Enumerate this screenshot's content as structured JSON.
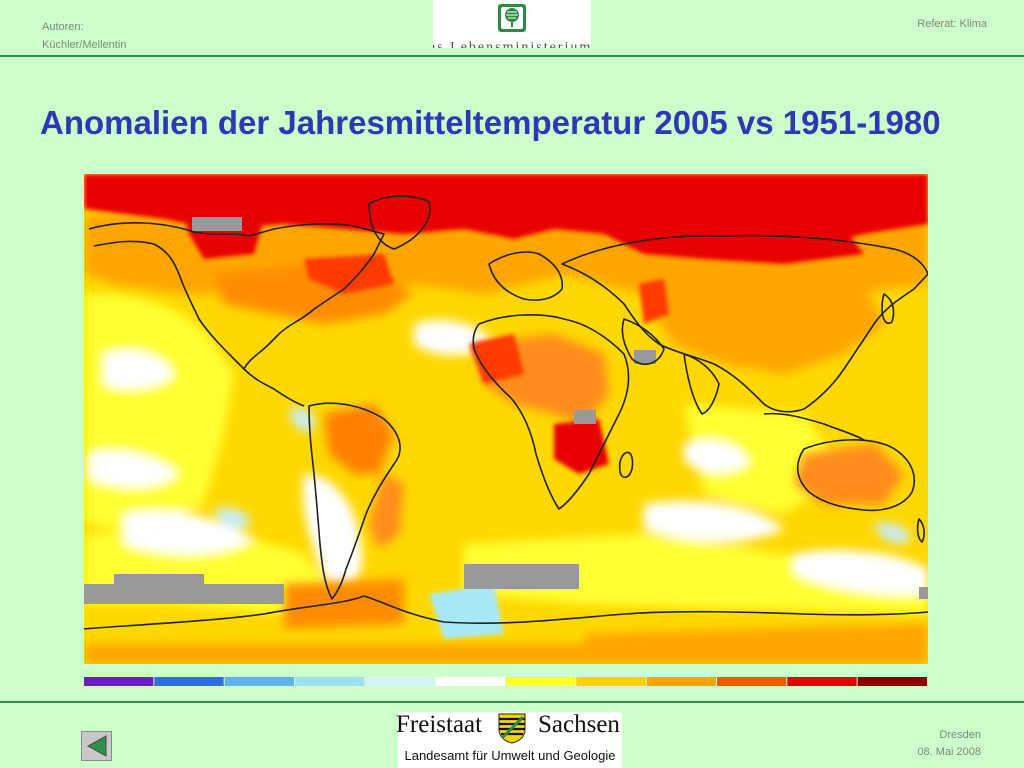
{
  "header": {
    "authors_label": "Autoren:",
    "authors_names": "Küchler/Mellentin",
    "topic": "Referat: Klima",
    "ministry_logo_text": "as Lebensministerium"
  },
  "slide": {
    "title": "Anomalien der Jahresmitteltemperatur 2005 vs 1951-1980"
  },
  "map": {
    "legend_colors": [
      "#6a1fbf",
      "#2f6fd6",
      "#5fb2ea",
      "#9ee0f0",
      "#d2f2f6",
      "#ffffff",
      "#ffff33",
      "#ffd200",
      "#ffa500",
      "#ff5500",
      "#e80000",
      "#8a0000"
    ],
    "land_outline_color": "#222222",
    "no_data_color": "#999999"
  },
  "footer": {
    "state_left": "Freistaat",
    "state_right": "Sachsen",
    "agency": "Landesamt für Umwelt und Geologie",
    "city": "Dresden",
    "date": "08. Mai 2008"
  },
  "nav": {
    "back_icon": "triangle-left-icon"
  }
}
